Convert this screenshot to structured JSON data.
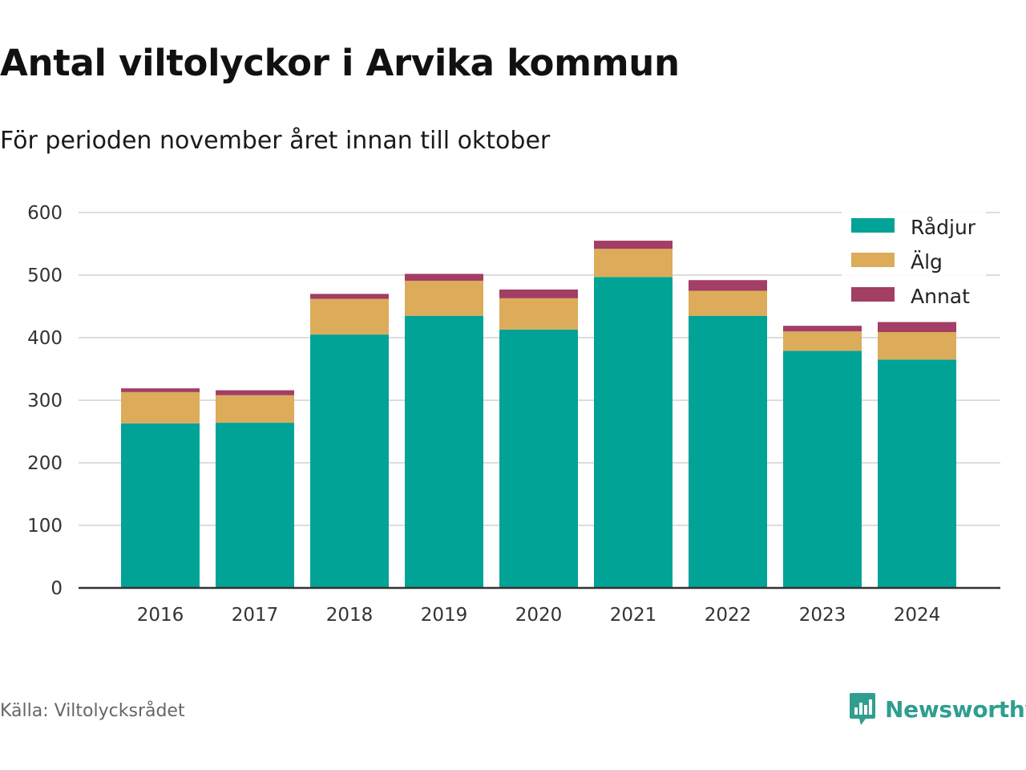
{
  "header": {
    "title": "Antal viltolyckor i Arvika kommun",
    "subtitle": "För perioden november året innan till oktober"
  },
  "footer": {
    "source": "Källa: Viltolycksrådet",
    "brand": "Newsworthy"
  },
  "colors": {
    "radjur": "#00a396",
    "alg": "#dcac5a",
    "annat": "#a33e64",
    "grid": "#dddddd",
    "axis": "#333333",
    "tick_text": "#333333",
    "brand": "#2f9e8f"
  },
  "chart_data": {
    "type": "bar",
    "stacked": true,
    "categories": [
      "2016",
      "2017",
      "2018",
      "2019",
      "2020",
      "2021",
      "2022",
      "2023",
      "2024"
    ],
    "series": [
      {
        "name": "Rådjur",
        "color": "#00a396",
        "values": [
          263,
          264,
          405,
          435,
          413,
          497,
          435,
          379,
          365
        ]
      },
      {
        "name": "Älg",
        "color": "#dcac5a",
        "values": [
          50,
          44,
          57,
          56,
          50,
          45,
          40,
          31,
          44
        ]
      },
      {
        "name": "Annat",
        "color": "#a33e64",
        "values": [
          6,
          8,
          8,
          11,
          14,
          13,
          17,
          9,
          16
        ]
      }
    ],
    "ylim": [
      0,
      600
    ],
    "yticks": [
      0,
      100,
      200,
      300,
      400,
      500,
      600
    ],
    "grid": true,
    "legend": "top-right"
  }
}
